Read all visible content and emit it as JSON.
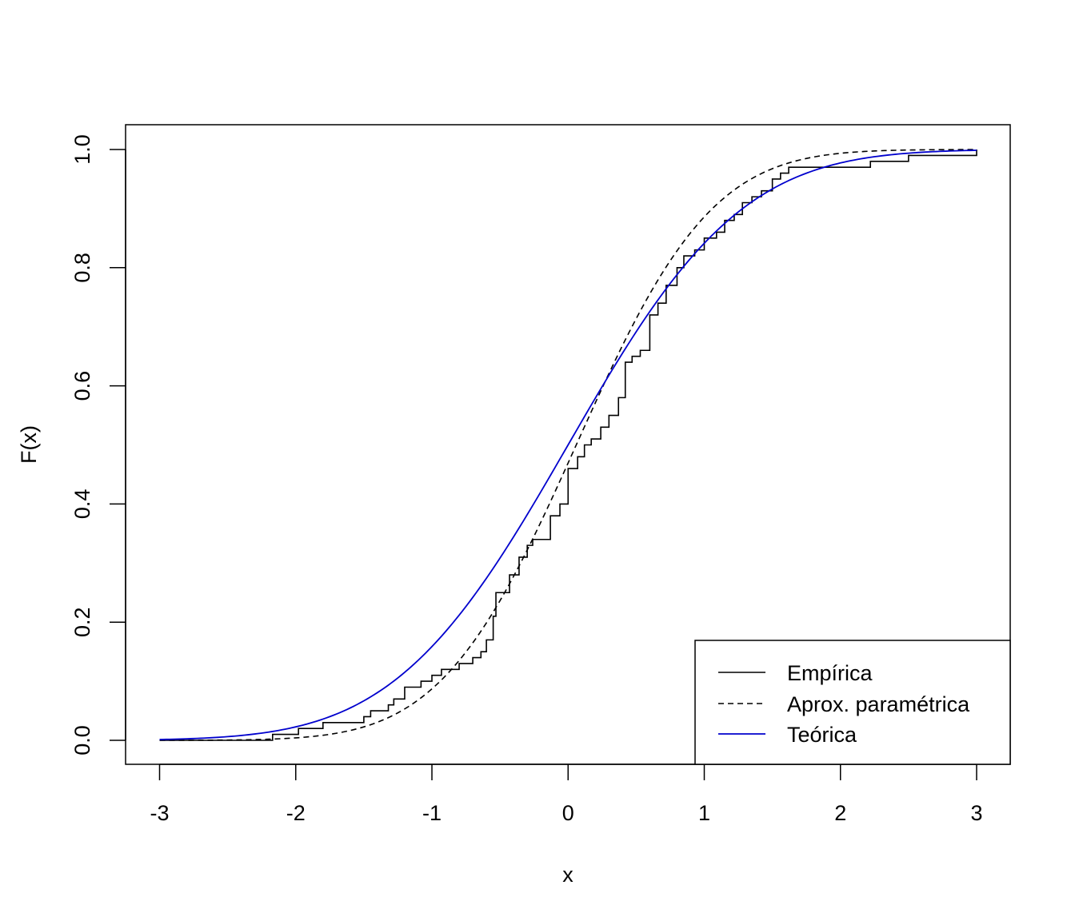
{
  "chart_data": {
    "type": "line",
    "title": "",
    "xlabel": "x",
    "ylabel": "F(x)",
    "xlim": [
      -3,
      3
    ],
    "ylim": [
      0,
      1
    ],
    "x_ticks": [
      "-3",
      "-2",
      "-1",
      "0",
      "1",
      "2",
      "3"
    ],
    "y_ticks": [
      "0.0",
      "0.2",
      "0.4",
      "0.6",
      "0.8",
      "1.0"
    ],
    "grid": false,
    "legend_position": "bottom-right",
    "series": [
      {
        "name": "Empírica",
        "style": "step",
        "color": "#000000",
        "points": [
          [
            -3.0,
            0.0
          ],
          [
            -2.17,
            0.01
          ],
          [
            -1.98,
            0.02
          ],
          [
            -1.8,
            0.03
          ],
          [
            -1.5,
            0.04
          ],
          [
            -1.45,
            0.05
          ],
          [
            -1.32,
            0.06
          ],
          [
            -1.28,
            0.07
          ],
          [
            -1.2,
            0.09
          ],
          [
            -1.08,
            0.1
          ],
          [
            -1.0,
            0.11
          ],
          [
            -0.93,
            0.12
          ],
          [
            -0.8,
            0.13
          ],
          [
            -0.7,
            0.14
          ],
          [
            -0.64,
            0.15
          ],
          [
            -0.6,
            0.17
          ],
          [
            -0.55,
            0.21
          ],
          [
            -0.53,
            0.25
          ],
          [
            -0.43,
            0.28
          ],
          [
            -0.36,
            0.31
          ],
          [
            -0.3,
            0.33
          ],
          [
            -0.26,
            0.34
          ],
          [
            -0.13,
            0.38
          ],
          [
            -0.06,
            0.4
          ],
          [
            0.0,
            0.46
          ],
          [
            0.07,
            0.48
          ],
          [
            0.12,
            0.5
          ],
          [
            0.17,
            0.51
          ],
          [
            0.24,
            0.53
          ],
          [
            0.3,
            0.55
          ],
          [
            0.37,
            0.58
          ],
          [
            0.42,
            0.64
          ],
          [
            0.47,
            0.65
          ],
          [
            0.53,
            0.66
          ],
          [
            0.6,
            0.72
          ],
          [
            0.66,
            0.74
          ],
          [
            0.72,
            0.77
          ],
          [
            0.8,
            0.8
          ],
          [
            0.85,
            0.82
          ],
          [
            0.93,
            0.83
          ],
          [
            1.0,
            0.85
          ],
          [
            1.09,
            0.86
          ],
          [
            1.15,
            0.88
          ],
          [
            1.22,
            0.89
          ],
          [
            1.28,
            0.91
          ],
          [
            1.35,
            0.92
          ],
          [
            1.42,
            0.93
          ],
          [
            1.5,
            0.95
          ],
          [
            1.56,
            0.96
          ],
          [
            1.62,
            0.97
          ],
          [
            1.87,
            0.97
          ],
          [
            2.0,
            0.97
          ],
          [
            2.22,
            0.98
          ],
          [
            2.5,
            0.99
          ],
          [
            3.0,
            1.0
          ]
        ]
      },
      {
        "name": "Aprox. paramétrica",
        "style": "dashed",
        "color": "#000000",
        "mean": 0.06,
        "sd": 0.78
      },
      {
        "name": "Teórica",
        "style": "solid",
        "color": "#0000cd",
        "mean": 0.0,
        "sd": 1.0
      }
    ]
  }
}
